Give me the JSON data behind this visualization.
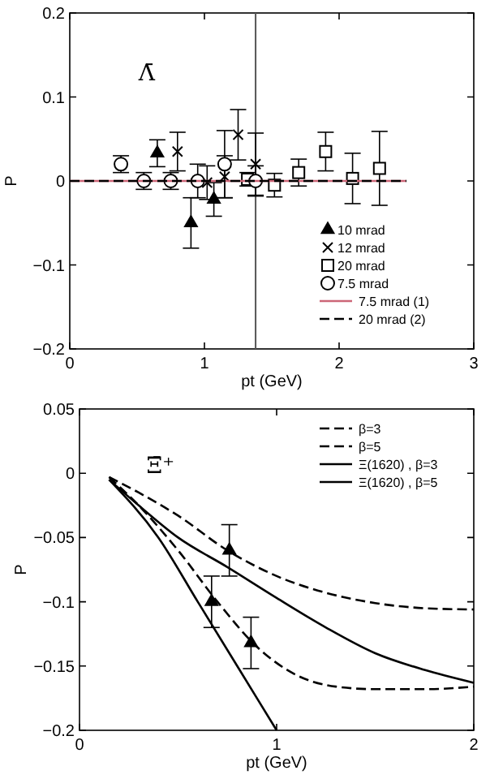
{
  "chart_data": [
    {
      "type": "scatter",
      "xlabel": "pt (GeV)",
      "ylabel": "P",
      "xlim": [
        0,
        3
      ],
      "ylim": [
        -0.2,
        0.2
      ],
      "xticks": [
        0,
        1,
        2,
        3
      ],
      "yticks": [
        -0.2,
        -0.1,
        0,
        0.1,
        0.2
      ],
      "legend": "right",
      "annotations": [
        "Λ̄"
      ],
      "ref_lines": [
        {
          "axis": "x",
          "value": 1.38,
          "color": "#555555"
        }
      ],
      "series": [
        {
          "name": "10 mrad",
          "marker": "triangle",
          "color": "#000000",
          "x": [
            0.65,
            0.9,
            1.07
          ],
          "values": [
            0.033,
            -0.05,
            -0.022
          ],
          "errors": [
            0.016,
            0.03,
            0.02
          ]
        },
        {
          "name": "12 mrad",
          "marker": "cross",
          "color": "#000000",
          "x": [
            0.8,
            1.02,
            1.15,
            1.25,
            1.38
          ],
          "values": [
            0.035,
            -0.002,
            0.005,
            0.055,
            0.02
          ],
          "errors": [
            0.023,
            0.02,
            0.025,
            0.03,
            0.037
          ]
        },
        {
          "name": "20 mrad",
          "marker": "square",
          "color": "#000000",
          "x": [
            1.32,
            1.52,
            1.7,
            1.9,
            2.1,
            2.3
          ],
          "values": [
            0.002,
            -0.005,
            0.01,
            0.035,
            0.003,
            0.015
          ],
          "errors": [
            0.008,
            0.014,
            0.016,
            0.023,
            0.03,
            0.044
          ]
        },
        {
          "name": "7.5 mrad",
          "marker": "circle",
          "color": "#000000",
          "x": [
            0.38,
            0.55,
            0.75,
            0.95,
            1.15,
            1.38
          ],
          "values": [
            0.02,
            0,
            0,
            0,
            0.02,
            0
          ],
          "errors": [
            0.01,
            0.01,
            0.01,
            0.02,
            0.04,
            0.018
          ]
        },
        {
          "name": "7.5 mrad (1)",
          "type": "line",
          "line_style": "solid",
          "color": "#cc6677",
          "x": [
            0,
            2.5
          ],
          "values": [
            0,
            0
          ]
        },
        {
          "name": "20 mrad (2)",
          "type": "line",
          "line_style": "dashed",
          "color": "#000000",
          "x": [
            0,
            2.5
          ],
          "values": [
            0,
            0
          ]
        }
      ]
    },
    {
      "type": "scatter",
      "xlabel": "pt (GeV)",
      "ylabel": "P",
      "xlim": [
        0,
        2
      ],
      "ylim": [
        -0.2,
        0.05
      ],
      "xticks": [
        0,
        1,
        2
      ],
      "yticks": [
        -0.2,
        -0.15,
        -0.1,
        -0.05,
        0,
        0.05
      ],
      "legend": "top right",
      "annotations": [
        "Ξ̄⁺"
      ],
      "series": [
        {
          "marker": "triangle",
          "color": "#000000",
          "x": [
            0.67,
            0.76,
            0.87
          ],
          "values": [
            -0.1,
            -0.06,
            -0.132
          ],
          "errors": [
            0.02,
            0.02,
            0.02
          ]
        },
        {
          "name": "β=3",
          "type": "line",
          "line_style": "dashed",
          "color": "#000000",
          "x": [
            0.15,
            0.3,
            0.5,
            0.75,
            1.0,
            1.25,
            1.5,
            1.75,
            2.0
          ],
          "values": [
            -0.003,
            -0.015,
            -0.033,
            -0.06,
            -0.08,
            -0.093,
            -0.101,
            -0.105,
            -0.106
          ]
        },
        {
          "name": "β=5",
          "type": "line",
          "line_style": "dashed",
          "color": "#000000",
          "x": [
            0.15,
            0.3,
            0.5,
            0.7,
            0.9,
            1.1,
            1.3,
            1.5,
            1.75,
            2.0
          ],
          "values": [
            -0.003,
            -0.025,
            -0.06,
            -0.1,
            -0.135,
            -0.157,
            -0.166,
            -0.168,
            -0.168,
            -0.166
          ]
        },
        {
          "name": "Ξ(1620) , β=3",
          "type": "line",
          "line_style": "solid",
          "color": "#000000",
          "x": [
            0.15,
            0.3,
            0.5,
            0.75,
            1.0,
            1.25,
            1.5,
            1.75,
            2.0
          ],
          "values": [
            -0.005,
            -0.025,
            -0.05,
            -0.073,
            -0.097,
            -0.12,
            -0.14,
            -0.153,
            -0.163
          ]
        },
        {
          "name": "Ξ(1620) , β=5",
          "type": "line",
          "line_style": "solid",
          "color": "#000000",
          "x": [
            0.15,
            0.4,
            0.6,
            0.8,
            1.0
          ],
          "values": [
            -0.005,
            -0.05,
            -0.1,
            -0.15,
            -0.2
          ]
        }
      ]
    }
  ]
}
